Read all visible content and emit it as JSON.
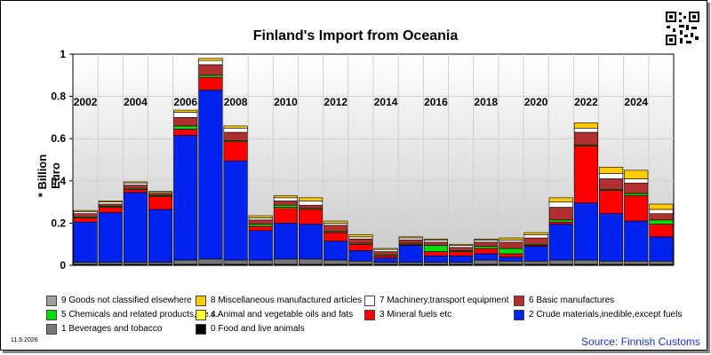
{
  "colors": {
    "c9": "#a0a0a0",
    "c8": "#ffcc00",
    "c7": "#ffffff",
    "c6": "#b03030",
    "c5": "#00dd00",
    "c4": "#ffff33",
    "c3": "#ff0000",
    "c2": "#0022ee",
    "c1": "#777777",
    "c0": "#000000"
  },
  "chart_data": {
    "type": "bar",
    "stacked": true,
    "title": "Finland's Import from Oceania",
    "ylabel": "* Billion Euro",
    "ylim": [
      0,
      1
    ],
    "yticks": [
      "0",
      "0.2",
      "0.4",
      "0.6",
      "0.8",
      "1"
    ],
    "xticks": [
      "2002",
      "2004",
      "2006",
      "2008",
      "2010",
      "2012",
      "2014",
      "2016",
      "2018",
      "2020",
      "2022",
      "2024"
    ],
    "categories": [
      "2002",
      "2003",
      "2004",
      "2005",
      "2006",
      "2007",
      "2008",
      "2009",
      "2010",
      "2011",
      "2012",
      "2013",
      "2014",
      "2015",
      "2016",
      "2017",
      "2018",
      "2019",
      "2020",
      "2021",
      "2022",
      "2023",
      "2024",
      "2025"
    ],
    "grid": true,
    "legend_position": "bottom",
    "series": [
      {
        "name": "0 Food and live animals",
        "color_key": "c0",
        "values": [
          0.005,
          0.005,
          0.005,
          0.005,
          0.005,
          0.005,
          0.005,
          0.005,
          0.005,
          0.005,
          0.005,
          0.005,
          0.005,
          0.005,
          0.005,
          0.005,
          0.005,
          0.005,
          0.005,
          0.005,
          0.005,
          0.005,
          0.005,
          0.005
        ]
      },
      {
        "name": "1 Beverages and tobacco",
        "color_key": "c1",
        "values": [
          0.01,
          0.01,
          0.01,
          0.01,
          0.02,
          0.025,
          0.02,
          0.02,
          0.025,
          0.025,
          0.02,
          0.015,
          0.01,
          0.01,
          0.01,
          0.01,
          0.02,
          0.015,
          0.015,
          0.02,
          0.02,
          0.015,
          0.015,
          0.015
        ]
      },
      {
        "name": "2 Crude materials,inedible,except fuels",
        "color_key": "c2",
        "values": [
          0.19,
          0.235,
          0.33,
          0.25,
          0.59,
          0.8,
          0.47,
          0.14,
          0.17,
          0.165,
          0.09,
          0.05,
          0.02,
          0.08,
          0.03,
          0.03,
          0.03,
          0.02,
          0.07,
          0.17,
          0.27,
          0.225,
          0.19,
          0.115
        ]
      },
      {
        "name": "3 Mineral fuels etc",
        "color_key": "c3",
        "values": [
          0.02,
          0.025,
          0.015,
          0.06,
          0.03,
          0.06,
          0.09,
          0.02,
          0.07,
          0.07,
          0.04,
          0.03,
          0.01,
          0.005,
          0.02,
          0.02,
          0.025,
          0.015,
          0.005,
          0.01,
          0.27,
          0.11,
          0.12,
          0.06
        ]
      },
      {
        "name": "4 Animal and vegetable oils and fats",
        "color_key": "c4",
        "values": [
          0.0,
          0.0,
          0.0,
          0.0,
          0.0,
          0.0,
          0.0,
          0.0,
          0.005,
          0.0,
          0.0,
          0.0,
          0.0,
          0.0,
          0.0,
          0.0,
          0.0,
          0.0,
          0.0,
          0.0,
          0.0,
          0.0,
          0.0,
          0.0
        ]
      },
      {
        "name": "5 Chemicals and related products,n.e.s.",
        "color_key": "c5",
        "values": [
          0.005,
          0.005,
          0.005,
          0.005,
          0.015,
          0.01,
          0.005,
          0.01,
          0.01,
          0.005,
          0.005,
          0.005,
          0.005,
          0.005,
          0.03,
          0.005,
          0.01,
          0.025,
          0.005,
          0.01,
          0.005,
          0.005,
          0.01,
          0.02
        ]
      },
      {
        "name": "6 Basic manufactures",
        "color_key": "c6",
        "values": [
          0.015,
          0.01,
          0.015,
          0.01,
          0.04,
          0.05,
          0.04,
          0.02,
          0.02,
          0.015,
          0.03,
          0.02,
          0.015,
          0.015,
          0.015,
          0.015,
          0.02,
          0.03,
          0.03,
          0.06,
          0.06,
          0.05,
          0.05,
          0.03
        ]
      },
      {
        "name": "7 Machinery,transport equipment",
        "color_key": "c7",
        "values": [
          0.01,
          0.01,
          0.01,
          0.005,
          0.025,
          0.02,
          0.02,
          0.01,
          0.015,
          0.02,
          0.01,
          0.01,
          0.01,
          0.01,
          0.01,
          0.01,
          0.01,
          0.01,
          0.015,
          0.025,
          0.02,
          0.025,
          0.02,
          0.02
        ]
      },
      {
        "name": "8 Miscellaneous manufactured articles",
        "color_key": "c8",
        "values": [
          0.005,
          0.005,
          0.005,
          0.005,
          0.01,
          0.01,
          0.01,
          0.01,
          0.01,
          0.015,
          0.01,
          0.01,
          0.005,
          0.005,
          0.005,
          0.005,
          0.005,
          0.01,
          0.01,
          0.02,
          0.025,
          0.03,
          0.04,
          0.025
        ]
      },
      {
        "name": "9 Goods not classified elsewhere",
        "color_key": "c9",
        "values": [
          0.0,
          0.0,
          0.0,
          0.0,
          0.0,
          0.0,
          0.0,
          0.0,
          0.0,
          0.0,
          0.0,
          0.0,
          0.0,
          0.0,
          0.0,
          0.0,
          0.0,
          0.0,
          0.0,
          0.0,
          0.0,
          0.0,
          0.0,
          0.0
        ]
      }
    ],
    "legend_order": [
      9,
      8,
      7,
      6,
      5,
      4,
      3,
      2,
      1,
      0
    ]
  },
  "footer": {
    "date": "11.6.2026",
    "source": "Source: Finnish Customs"
  }
}
